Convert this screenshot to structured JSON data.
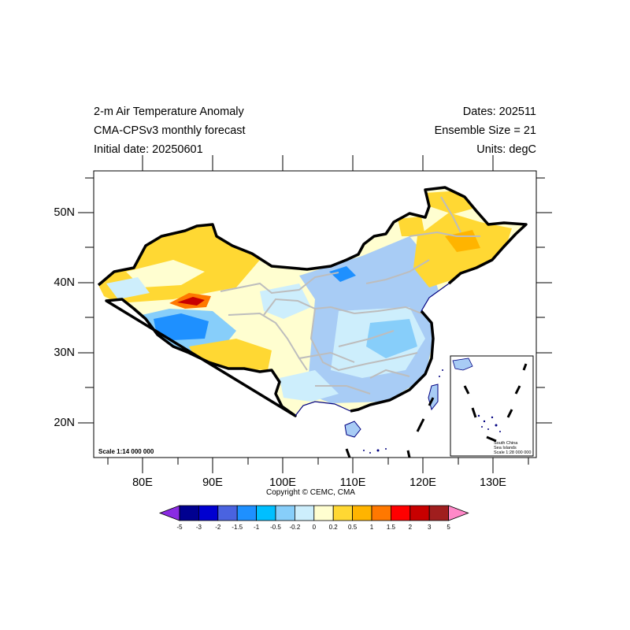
{
  "header": {
    "title_line1": "2-m Air Temperature Anomaly",
    "title_line2": "CMA-CPSv3 monthly forecast",
    "title_line3": "Initial date: 20250601",
    "dates": "Dates: 202511",
    "ensemble": "Ensemble Size = 21",
    "units": "Units: degC"
  },
  "axes": {
    "lat_labels": [
      "50N",
      "40N",
      "30N",
      "20N"
    ],
    "lon_labels": [
      "80E",
      "90E",
      "100E",
      "110E",
      "120E",
      "130E"
    ]
  },
  "map": {
    "scale_main": "Scale 1:14 000 000",
    "inset_title1": "South China",
    "inset_title2": "Sea Islands",
    "inset_scale": "Scale 1:28 000 000",
    "copyright": "Copyright © CEMC, CMA"
  },
  "colorbar": {
    "labels": [
      "-5",
      "-3",
      "-2",
      "-1.5",
      "-1",
      "-0.5",
      "-0.2",
      "0",
      "0.2",
      "0.5",
      "1",
      "1.5",
      "2",
      "3",
      "5"
    ],
    "colors": [
      "#000090",
      "#0000d0",
      "#4a63e0",
      "#1e90ff",
      "#00bfff",
      "#87cefa",
      "#cdeefc",
      "#fffed0",
      "#ffd833",
      "#ffb400",
      "#ff7800",
      "#ff0000",
      "#c80000",
      "#a01e1e"
    ],
    "left_arrow_color": "#8a2be2",
    "right_arrow_color": "#ff88c8"
  },
  "colors": {
    "warm_fill": "#ffd833",
    "cool_fill": "#a8ccf5",
    "neutral_fill": "#fffed0",
    "border": "#000000",
    "province_lines": "#bdbdbd"
  }
}
